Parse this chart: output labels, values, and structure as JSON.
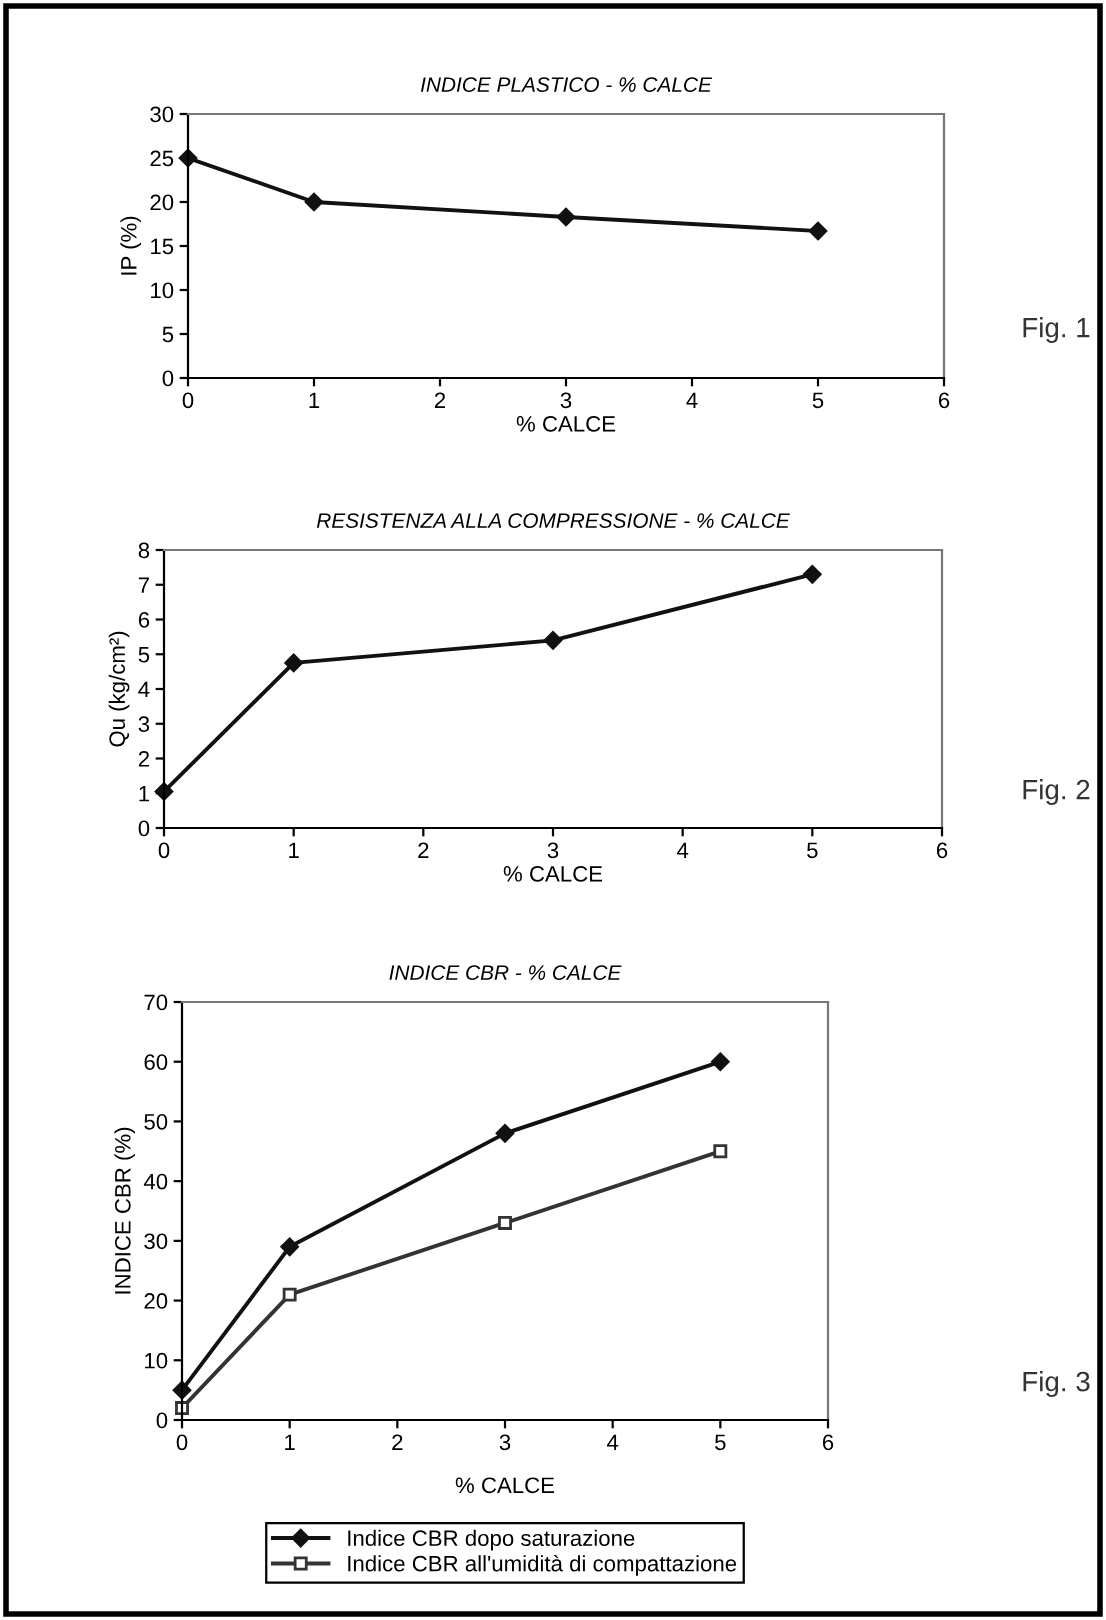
{
  "chart_data": [
    {
      "type": "line",
      "title": "INDICE PLASTICO - % CALCE",
      "xlabel": "% CALCE",
      "ylabel": "IP (%)",
      "x": [
        0,
        1,
        3,
        5
      ],
      "series": [
        {
          "color": "#111111",
          "values": [
            25,
            20,
            18.3,
            16.7
          ],
          "marker": "diamond"
        }
      ],
      "xlim": [
        0,
        6
      ],
      "xticks": [
        0,
        1,
        2,
        3,
        4,
        5,
        6
      ],
      "ylim": [
        0,
        30
      ],
      "yticks": [
        0,
        5,
        10,
        15,
        20,
        25,
        30
      ],
      "grid": false,
      "legend": false,
      "annotations": [
        "Fig. 1"
      ]
    },
    {
      "type": "line",
      "title": "RESISTENZA ALLA COMPRESSIONE - % CALCE",
      "xlabel": "% CALCE",
      "ylabel": "Qu (kg/cm²)",
      "x": [
        0,
        1,
        3,
        5
      ],
      "series": [
        {
          "color": "#111111",
          "values": [
            1.05,
            4.75,
            5.4,
            7.3
          ],
          "marker": "diamond"
        }
      ],
      "xlim": [
        0,
        6
      ],
      "xticks": [
        0,
        1,
        2,
        3,
        4,
        5,
        6
      ],
      "ylim": [
        0,
        8
      ],
      "yticks": [
        0,
        1,
        2,
        3,
        4,
        5,
        6,
        7,
        8
      ],
      "grid": false,
      "legend": false,
      "annotations": [
        "Fig. 2"
      ]
    },
    {
      "type": "line",
      "title": "INDICE CBR - % CALCE",
      "xlabel": "% CALCE",
      "ylabel": "INDICE CBR (%)",
      "x": [
        0,
        1,
        3,
        5
      ],
      "series": [
        {
          "name": "Indice CBR dopo saturazione",
          "color": "#111111",
          "values": [
            5,
            29,
            48,
            60
          ],
          "marker": "diamond"
        },
        {
          "name": "Indice CBR all'umidità di compattazione",
          "color": "#333333",
          "values": [
            2,
            21,
            33,
            45
          ],
          "marker": "square"
        }
      ],
      "xlim": [
        0,
        6
      ],
      "xticks": [
        0,
        1,
        2,
        3,
        4,
        5,
        6
      ],
      "ylim": [
        0,
        70
      ],
      "yticks": [
        0,
        10,
        20,
        30,
        40,
        50,
        60,
        70
      ],
      "grid": false,
      "legend": "bottom",
      "annotations": [
        "Fig. 3"
      ]
    }
  ]
}
